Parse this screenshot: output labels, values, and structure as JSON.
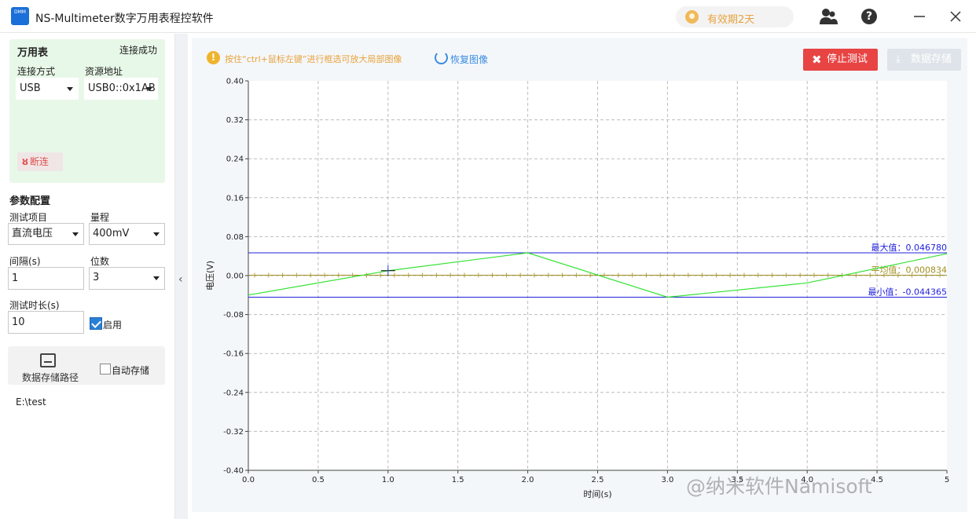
{
  "window": {
    "logo_top": "DMM",
    "title": "NS-Multimeter数字万用表程控软件",
    "license": "有效期2天"
  },
  "icons": {
    "user": "user-icon",
    "help": "help-icon",
    "minimize": "minimize-icon",
    "close": "close-icon"
  },
  "sidebar": {
    "meter": {
      "title": "万用表",
      "status": "连接成功",
      "conn_label": "连接方式",
      "conn_value": "USB",
      "res_label": "资源地址",
      "res_value": "USB0::0x1AB",
      "disconnect": "断连"
    },
    "params": {
      "title": "参数配置",
      "item_label": "测试项目",
      "item_value": "直流电压",
      "range_label": "量程",
      "range_value": "400mV",
      "interval_label": "间隔(s)",
      "interval_value": "1",
      "digits_label": "位数",
      "digits_value": "3",
      "duration_label": "测试时长(s)",
      "duration_value": "10",
      "enable_label": "启用",
      "enable_checked": true
    },
    "storage": {
      "path_label": "数据存储路径",
      "auto_label": "自动存储",
      "auto_checked": false,
      "path": "E:\\test"
    }
  },
  "main": {
    "hint": "按住“ctrl+鼠标左键”进行框选可放大局部图像",
    "restore": "恢复图像",
    "stop": "停止测试",
    "save": "数据存储"
  },
  "watermark": "@纳米软件Namisoft",
  "chart_data": {
    "type": "line",
    "xlabel": "时间(s)",
    "ylabel": "电压(V)",
    "xlim": [
      0,
      5
    ],
    "ylim": [
      -0.4,
      0.4
    ],
    "x_ticks": [
      "0.0",
      "0.5",
      "1.0",
      "1.5",
      "2.0",
      "2.5",
      "3.0",
      "3.5",
      "4.0",
      "4.5",
      "5"
    ],
    "y_ticks": [
      "0.40",
      "0.32",
      "0.24",
      "0.16",
      "0.08",
      "0.00",
      "-0.08",
      "-0.16",
      "-0.24",
      "-0.32",
      "-0.40"
    ],
    "grid": true,
    "series": [
      {
        "x": [
          0,
          1,
          2,
          3,
          4,
          5
        ],
        "y": [
          -0.04,
          0.01,
          0.04678,
          -0.044365,
          -0.015,
          0.045
        ],
        "color": "#34e234"
      }
    ],
    "reference_lines": [
      {
        "label": "最大值：0.046780",
        "value": 0.04678,
        "color": "#2222dd"
      },
      {
        "label": "平均值：0.000834",
        "value": 0.000834,
        "color": "#a09020"
      },
      {
        "label": "最小值：-0.044365",
        "value": -0.044365,
        "color": "#2222dd"
      }
    ]
  }
}
